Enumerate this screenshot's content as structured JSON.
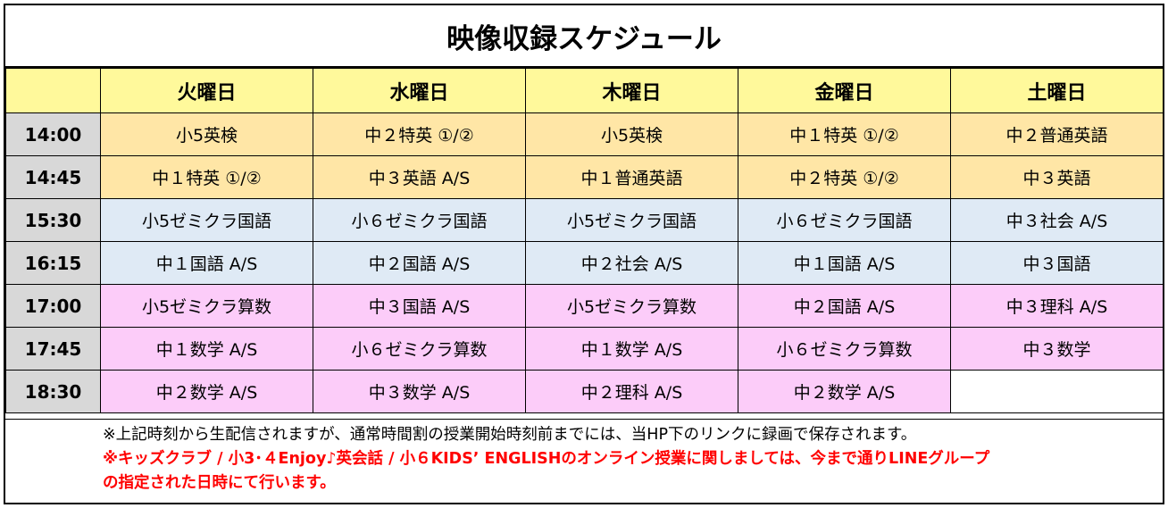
{
  "title": "映像収録スケジュール",
  "days": [
    "火曜日",
    "水曜日",
    "木曜日",
    "金曜日",
    "土曜日"
  ],
  "rows": [
    {
      "time": "14:00",
      "cells": [
        "小5英検",
        "中２特英 ①/②",
        "小5英検",
        "中１特英 ①/②",
        "中２普通英語"
      ]
    },
    {
      "time": "14:45",
      "cells": [
        "中１特英 ①/②",
        "中３英語 A/S",
        "中１普通英語",
        "中２特英 ①/②",
        "中３英語"
      ]
    },
    {
      "time": "15:30",
      "cells": [
        "小5ゼミクラ国語",
        "小６ゼミクラ国語",
        "小5ゼミクラ国語",
        "小６ゼミクラ国語",
        "中３社会 A/S"
      ]
    },
    {
      "time": "16:15",
      "cells": [
        "中１国語 A/S",
        "中２国語 A/S",
        "中２社会 A/S",
        "中１国語 A/S",
        "中３国語"
      ]
    },
    {
      "time": "17:00",
      "cells": [
        "小5ゼミクラ算数",
        "中３国語 A/S",
        "小5ゼミクラ算数",
        "中２国語 A/S",
        "中３理科 A/S"
      ]
    },
    {
      "time": "17:45",
      "cells": [
        "中１数学 A/S",
        "小６ゼミクラ算数",
        "中１数学 A/S",
        "小６ゼミクラ算数",
        "中３数学"
      ]
    },
    {
      "time": "18:30",
      "cells": [
        "中２数学 A/S",
        "中３数学 A/S",
        "中２理科 A/S",
        "中２数学 A/S",
        ""
      ]
    }
  ],
  "notes": {
    "line1": "※上記時刻から生配信されますが、通常時間割の授業開始時刻前までには、当HP下のリンクに録画で保存されます。",
    "line2": "※キッズクラブ / 小3･４Enjoy♪英会話 / 小６KIDS’ ENGLISHのオンライン授業に関しましては、今まで通りLINEグループ",
    "line3": "の指定された日時にて行います。"
  },
  "colors": {
    "header": "#fff99b",
    "time": "#d8d8d8",
    "english": "#ffe6a6",
    "japanese": "#dfeaf5",
    "math": "#fcccf9",
    "notice": "#ff0000"
  }
}
